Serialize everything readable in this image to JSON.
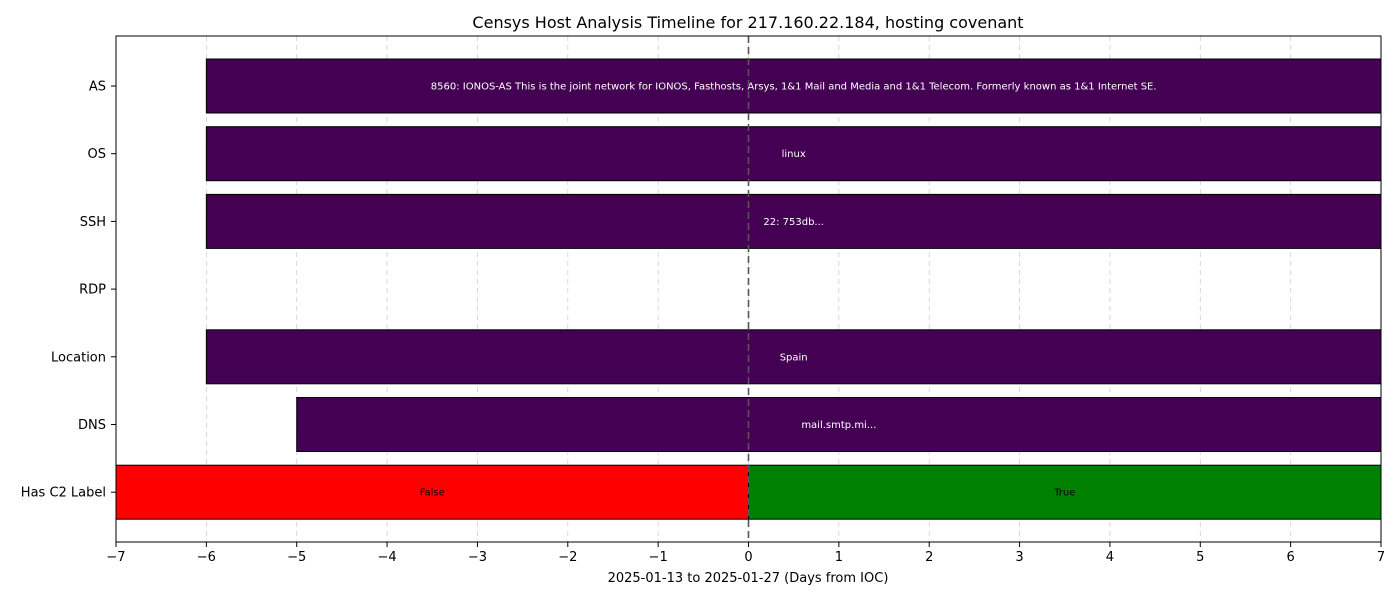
{
  "chart_data": {
    "type": "bar",
    "orientation": "horizontal",
    "title": "Censys Host Analysis Timeline for 217.160.22.184, hosting covenant",
    "xlabel": "2025-01-13 to 2025-01-27 (Days from IOC)",
    "ylabel": "",
    "xlim": [
      -7,
      7
    ],
    "xticks": [
      "−7",
      "−6",
      "−5",
      "−4",
      "−3",
      "−2",
      "−1",
      "0",
      "1",
      "2",
      "3",
      "4",
      "5",
      "6",
      "7"
    ],
    "xtick_values": [
      -7,
      -6,
      -5,
      -4,
      -3,
      -2,
      -1,
      0,
      1,
      2,
      3,
      4,
      5,
      6,
      7
    ],
    "grid": "vertical dashed",
    "ioc_marker_x": 0,
    "categories": [
      "AS",
      "OS",
      "SSH",
      "RDP",
      "Location",
      "DNS",
      "Has C2 Label"
    ],
    "segments": [
      {
        "category": "AS",
        "start": -6,
        "end": 7,
        "label": "8560: IONOS-AS This is the joint network for IONOS, Fasthosts, Arsys, 1&1 Mail and Media and 1&1 Telecom. Formerly known as 1&1 Internet SE.",
        "color": "#440154",
        "label_color": "#ffffff"
      },
      {
        "category": "OS",
        "start": -6,
        "end": 7,
        "label": "linux",
        "color": "#440154",
        "label_color": "#ffffff"
      },
      {
        "category": "SSH",
        "start": -6,
        "end": 7,
        "label": "22: 753db...",
        "color": "#440154",
        "label_color": "#ffffff"
      },
      {
        "category": "Location",
        "start": -6,
        "end": 7,
        "label": "Spain",
        "color": "#440154",
        "label_color": "#ffffff"
      },
      {
        "category": "DNS",
        "start": -5,
        "end": 7,
        "label": "mail.smtp.mi...",
        "color": "#440154",
        "label_color": "#ffffff"
      },
      {
        "category": "Has C2 Label",
        "start": -7,
        "end": 0,
        "label": "False",
        "color": "#ff0000",
        "label_color": "#000000"
      },
      {
        "category": "Has C2 Label",
        "start": 0,
        "end": 7,
        "label": "True",
        "color": "#008000",
        "label_color": "#000000"
      }
    ]
  }
}
